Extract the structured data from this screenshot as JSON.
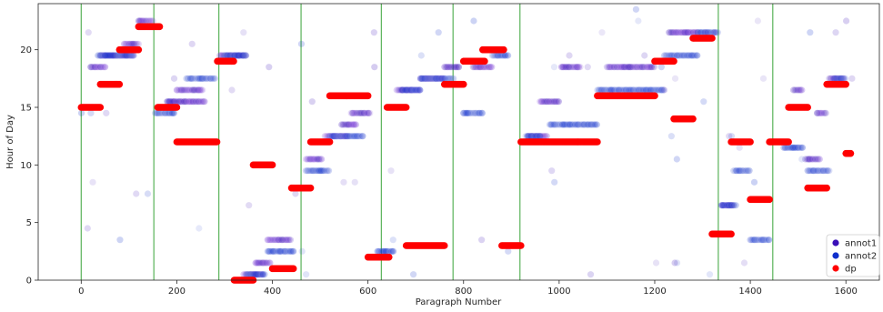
{
  "chart_data": {
    "type": "scatter",
    "title": "",
    "xlabel": "Paragraph Number",
    "ylabel": "Hour of Day",
    "xlim": [
      -90,
      1670
    ],
    "ylim": [
      0,
      24
    ],
    "xticks": [
      0,
      200,
      400,
      600,
      800,
      1000,
      1200,
      1400,
      1600
    ],
    "yticks": [
      0,
      5,
      10,
      15,
      20
    ],
    "grid": false,
    "legend_position": "lower right",
    "colors": {
      "annot1": "#3a0fb8",
      "annot2": "#1030cc",
      "dp": "#ff0000",
      "chapter_line": "#59b359",
      "mix1": "#7a3fd6",
      "mix2": "#5a6fd8"
    },
    "chapter_boundaries": [
      0,
      152,
      288,
      460,
      628,
      778,
      918,
      1333,
      1447
    ],
    "series": [
      {
        "name": "dp",
        "segments": [
          {
            "x": [
              0,
              40
            ],
            "y": 15
          },
          {
            "x": [
              40,
              80
            ],
            "y": 17
          },
          {
            "x": [
              80,
              120
            ],
            "y": 20
          },
          {
            "x": [
              120,
              165
            ],
            "y": 22
          },
          {
            "x": [
              160,
              200
            ],
            "y": 15
          },
          {
            "x": [
              200,
              285
            ],
            "y": 12
          },
          {
            "x": [
              285,
              320
            ],
            "y": 19
          },
          {
            "x": [
              320,
              360
            ],
            "y": 0
          },
          {
            "x": [
              360,
              400
            ],
            "y": 10
          },
          {
            "x": [
              400,
              445
            ],
            "y": 1
          },
          {
            "x": [
              440,
              480
            ],
            "y": 8
          },
          {
            "x": [
              480,
              520
            ],
            "y": 12
          },
          {
            "x": [
              520,
              600
            ],
            "y": 16
          },
          {
            "x": [
              600,
              645
            ],
            "y": 2
          },
          {
            "x": [
              640,
              680
            ],
            "y": 15
          },
          {
            "x": [
              680,
              760
            ],
            "y": 3
          },
          {
            "x": [
              760,
              800
            ],
            "y": 17
          },
          {
            "x": [
              800,
              845
            ],
            "y": 19
          },
          {
            "x": [
              840,
              885
            ],
            "y": 20
          },
          {
            "x": [
              880,
              920
            ],
            "y": 3
          },
          {
            "x": [
              920,
              1080
            ],
            "y": 12
          },
          {
            "x": [
              1080,
              1200
            ],
            "y": 16
          },
          {
            "x": [
              1200,
              1240
            ],
            "y": 19
          },
          {
            "x": [
              1240,
              1280
            ],
            "y": 14
          },
          {
            "x": [
              1280,
              1320
            ],
            "y": 21
          },
          {
            "x": [
              1320,
              1360
            ],
            "y": 4
          },
          {
            "x": [
              1360,
              1400
            ],
            "y": 12
          },
          {
            "x": [
              1400,
              1440
            ],
            "y": 7
          },
          {
            "x": [
              1440,
              1480
            ],
            "y": 12
          },
          {
            "x": [
              1480,
              1520
            ],
            "y": 15
          },
          {
            "x": [
              1520,
              1560
            ],
            "y": 8
          },
          {
            "x": [
              1560,
              1600
            ],
            "y": 17
          },
          {
            "x": [
              1600,
              1610
            ],
            "y": 11
          }
        ]
      },
      {
        "name": "annot1",
        "segments": [
          {
            "x": [
              20,
              50
            ],
            "y": 18.5
          },
          {
            "x": [
              40,
              110
            ],
            "y": 19.5
          },
          {
            "x": [
              90,
              120
            ],
            "y": 20.5
          },
          {
            "x": [
              120,
              150
            ],
            "y": 22.5
          },
          {
            "x": [
              180,
              260
            ],
            "y": 15.5
          },
          {
            "x": [
              200,
              255
            ],
            "y": 16.5
          },
          {
            "x": [
              290,
              345
            ],
            "y": 19.5
          },
          {
            "x": [
              340,
              380
            ],
            "y": 0.5
          },
          {
            "x": [
              365,
              395
            ],
            "y": 1.5
          },
          {
            "x": [
              390,
              440
            ],
            "y": 3.5
          },
          {
            "x": [
              470,
              505
            ],
            "y": 10.5
          },
          {
            "x": [
              510,
              560
            ],
            "y": 12.5
          },
          {
            "x": [
              545,
              575
            ],
            "y": 13.5
          },
          {
            "x": [
              565,
              605
            ],
            "y": 14.5
          },
          {
            "x": [
              660,
              710
            ],
            "y": 16.5
          },
          {
            "x": [
              710,
              760
            ],
            "y": 17.5
          },
          {
            "x": [
              760,
              790
            ],
            "y": 18.5
          },
          {
            "x": [
              820,
              860
            ],
            "y": 18.5
          },
          {
            "x": [
              935,
              975
            ],
            "y": 12.5
          },
          {
            "x": [
              960,
              1000
            ],
            "y": 15.5
          },
          {
            "x": [
              1005,
              1045
            ],
            "y": 18.5
          },
          {
            "x": [
              1100,
              1200
            ],
            "y": 18.5
          },
          {
            "x": [
              1230,
              1290
            ],
            "y": 21.5
          },
          {
            "x": [
              1340,
              1365
            ],
            "y": 6.5
          },
          {
            "x": [
              1490,
              1510
            ],
            "y": 16.5
          },
          {
            "x": [
              1515,
              1545
            ],
            "y": 10.5
          },
          {
            "x": [
              1540,
              1560
            ],
            "y": 14.5
          },
          {
            "x": [
              1565,
              1595
            ],
            "y": 17.5
          }
        ]
      },
      {
        "name": "annot2",
        "segments": [
          {
            "x": [
              35,
              110
            ],
            "y": 19.5
          },
          {
            "x": [
              155,
              195
            ],
            "y": 14.5
          },
          {
            "x": [
              220,
              280
            ],
            "y": 17.5
          },
          {
            "x": [
              300,
              345
            ],
            "y": 19.5
          },
          {
            "x": [
              345,
              385
            ],
            "y": 0.5
          },
          {
            "x": [
              390,
              445
            ],
            "y": 2.5
          },
          {
            "x": [
              470,
              520
            ],
            "y": 9.5
          },
          {
            "x": [
              520,
              590
            ],
            "y": 12.5
          },
          {
            "x": [
              620,
              655
            ],
            "y": 2.5
          },
          {
            "x": [
              670,
              710
            ],
            "y": 16.5
          },
          {
            "x": [
              710,
              780
            ],
            "y": 17.5
          },
          {
            "x": [
              800,
              840
            ],
            "y": 14.5
          },
          {
            "x": [
              860,
              895
            ],
            "y": 19.5
          },
          {
            "x": [
              930,
              960
            ],
            "y": 12.5
          },
          {
            "x": [
              980,
              1080
            ],
            "y": 13.5
          },
          {
            "x": [
              1080,
              1220
            ],
            "y": 16.5
          },
          {
            "x": [
              1220,
              1290
            ],
            "y": 19.5
          },
          {
            "x": [
              1290,
              1333
            ],
            "y": 21.5
          },
          {
            "x": [
              1340,
              1370
            ],
            "y": 6.5
          },
          {
            "x": [
              1365,
              1400
            ],
            "y": 9.5
          },
          {
            "x": [
              1400,
              1440
            ],
            "y": 3.5
          },
          {
            "x": [
              1470,
              1510
            ],
            "y": 11.5
          },
          {
            "x": [
              1520,
              1565
            ],
            "y": 9.5
          },
          {
            "x": [
              1575,
              1600
            ],
            "y": 17.5
          }
        ]
      }
    ],
    "legend": [
      "annot1",
      "annot2",
      "dp"
    ]
  }
}
